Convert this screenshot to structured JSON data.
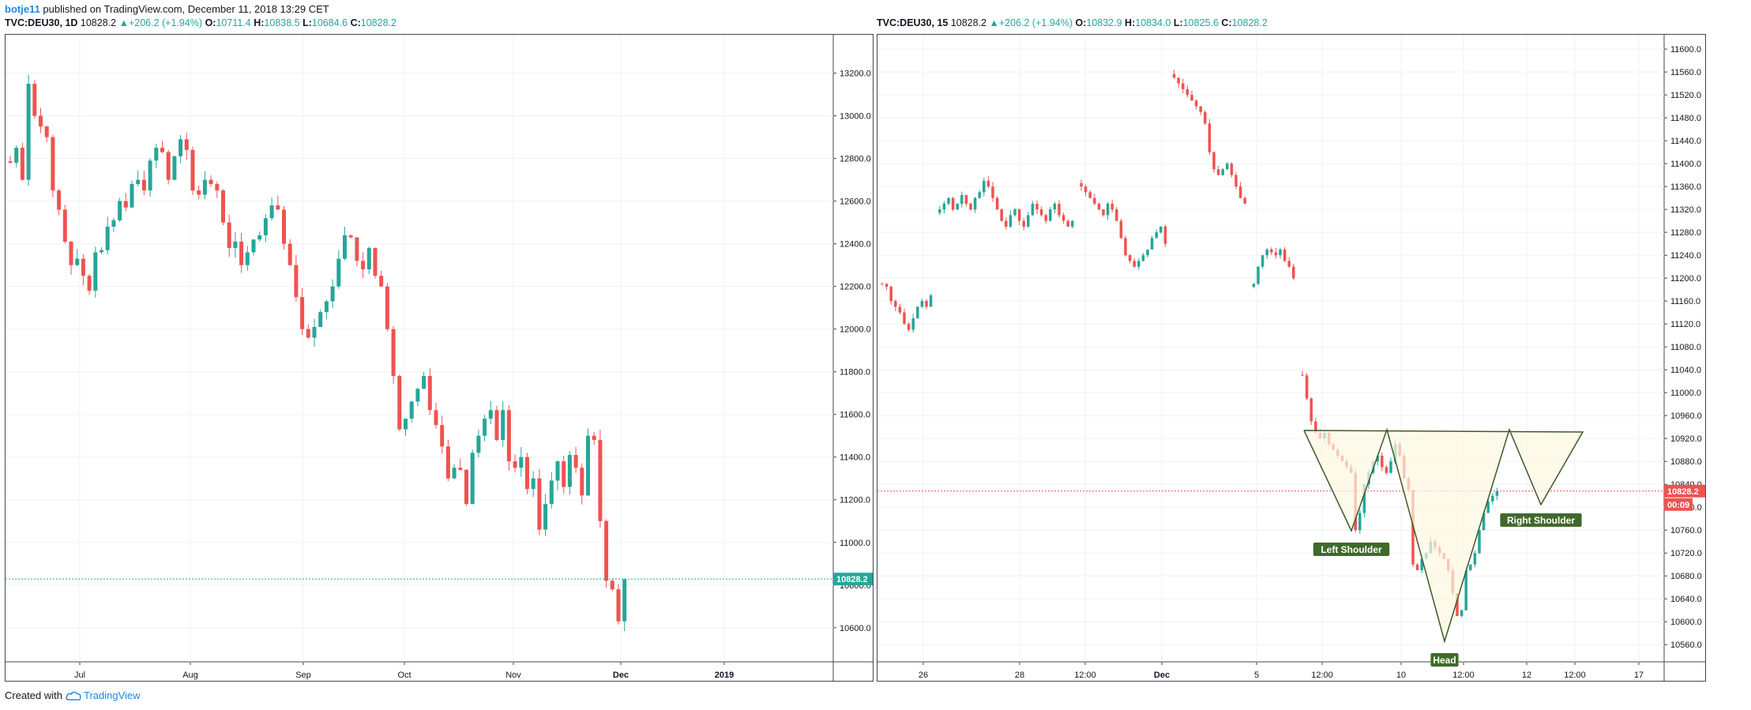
{
  "header": {
    "author": "botje11",
    "published_text": "published on TradingView.com, December 11, 2018 13:29 CET"
  },
  "footer": {
    "created_with": "Created with",
    "brand": "TradingView"
  },
  "colors": {
    "up": "#26a69a",
    "down": "#ef5350",
    "grid": "#eef0f3",
    "axis": "#434651",
    "pattern_line": "#3d5a2b",
    "pattern_fill": "#fdf8e1",
    "pattern_label_bg": "#3f6a2a",
    "price_line_left": "#26a69a",
    "price_line_right": "#ef5350"
  },
  "chart_data": [
    {
      "type": "candlestick",
      "symbol": "TVC:DEU30",
      "interval": "1D",
      "legend": {
        "last": "10828.2",
        "change": "+206.2 (+1.94%)",
        "O": "10711.4",
        "H": "10838.5",
        "L": "10684.6",
        "C": "10828.2"
      },
      "ylim": [
        10440,
        13380
      ],
      "y_ticks": [
        "13200.0",
        "13000.0",
        "12800.0",
        "12600.0",
        "12400.0",
        "12200.0",
        "12000.0",
        "11800.0",
        "11600.0",
        "11400.0",
        "11200.0",
        "11000.0",
        "10800.0",
        "10600.0"
      ],
      "x_ticks": [
        "Jul",
        "Aug",
        "Sep",
        "Oct",
        "Nov",
        "Dec",
        "2019"
      ],
      "last_price_label": "10828.2",
      "closes": [
        12780,
        12850,
        12700,
        13150,
        13000,
        12950,
        12900,
        12650,
        12560,
        12410,
        12300,
        12330,
        12250,
        12180,
        12360,
        12370,
        12480,
        12510,
        12600,
        12570,
        12680,
        12700,
        12650,
        12790,
        12850,
        12830,
        12700,
        12810,
        12890,
        12840,
        12650,
        12630,
        12700,
        12680,
        12650,
        12500,
        12380,
        12410,
        12300,
        12360,
        12420,
        12440,
        12520,
        12580,
        12560,
        12400,
        12300,
        12150,
        12000,
        11960,
        12010,
        12080,
        12130,
        12200,
        12330,
        12440,
        12430,
        12320,
        12280,
        12380,
        12250,
        12200,
        12000,
        11780,
        11530,
        11580,
        11660,
        11720,
        11780,
        11620,
        11550,
        11450,
        11300,
        11350,
        11340,
        11180,
        11420,
        11500,
        11580,
        11620,
        11480,
        11620,
        11380,
        11350,
        11400,
        11250,
        11300,
        11060,
        11180,
        11290,
        11380,
        11260,
        11410,
        11350,
        11220,
        11500,
        11480,
        11100,
        10820,
        10780,
        10630,
        10828.2
      ],
      "ohlc_sample_note_hidden": ""
    },
    {
      "type": "candlestick",
      "symbol": "TVC:DEU30",
      "interval": "15",
      "legend": {
        "last": "10828.2",
        "change": "+206.2 (+1.94%)",
        "O": "10832.9",
        "H": "10834.0",
        "L": "10825.6",
        "C": "10828.2"
      },
      "ylim": [
        10530,
        11625
      ],
      "y_ticks": [
        "11600.0",
        "11560.0",
        "11520.0",
        "11480.0",
        "11440.0",
        "11400.0",
        "11360.0",
        "11320.0",
        "11280.0",
        "11240.0",
        "11200.0",
        "11160.0",
        "11120.0",
        "11080.0",
        "11040.0",
        "11000.0",
        "10960.0",
        "10920.0",
        "10880.0",
        "10840.0",
        "10800.0",
        "10760.0",
        "10720.0",
        "10680.0",
        "10640.0",
        "10600.0",
        "10560.0"
      ],
      "x_ticks": [
        "26",
        "28",
        "12:00",
        "Dec",
        "5",
        "12:00",
        "10",
        "12:00",
        "12",
        "12:00",
        "17"
      ],
      "last_price_label": "10828.2",
      "countdown_label": "00:09",
      "annotations": [
        "Left Shoulder",
        "Head",
        "Right Shoulder"
      ],
      "closes": [
        11190,
        11185,
        11160,
        11150,
        11140,
        11120,
        11110,
        11130,
        11150,
        11160,
        11150,
        11170,
        null,
        11320,
        11330,
        11340,
        11320,
        11330,
        11345,
        11330,
        11320,
        11340,
        11350,
        11370,
        11360,
        11340,
        11320,
        11300,
        11290,
        11310,
        11320,
        11300,
        11290,
        11310,
        11330,
        11320,
        11310,
        11300,
        11320,
        11330,
        11310,
        11300,
        11290,
        11300,
        null,
        11360,
        11350,
        11340,
        11330,
        11320,
        11310,
        11330,
        11320,
        11300,
        11270,
        11240,
        11230,
        11220,
        11230,
        11240,
        11250,
        11270,
        11280,
        11290,
        11260,
        null,
        11550,
        11540,
        11530,
        11520,
        11510,
        11500,
        11490,
        11470,
        11420,
        11390,
        11380,
        11390,
        11400,
        11380,
        11360,
        11340,
        11330,
        null,
        11190,
        11220,
        11240,
        11250,
        11245,
        11240,
        11250,
        11230,
        11220,
        11200,
        null,
        11030,
        10990,
        10950,
        10930,
        10920,
        10930,
        10910,
        10900,
        10890,
        10880,
        10870,
        10860,
        10760,
        10790,
        10840,
        10860,
        10880,
        10890,
        10870,
        10860,
        10880,
        10910,
        10890,
        10850,
        10830,
        10700,
        10690,
        10710,
        10720,
        10740,
        10730,
        10720,
        10710,
        10690,
        10650,
        10610,
        10620,
        10690,
        10700,
        10720,
        10760,
        10790,
        10810,
        10820,
        10828.2
      ]
    }
  ]
}
